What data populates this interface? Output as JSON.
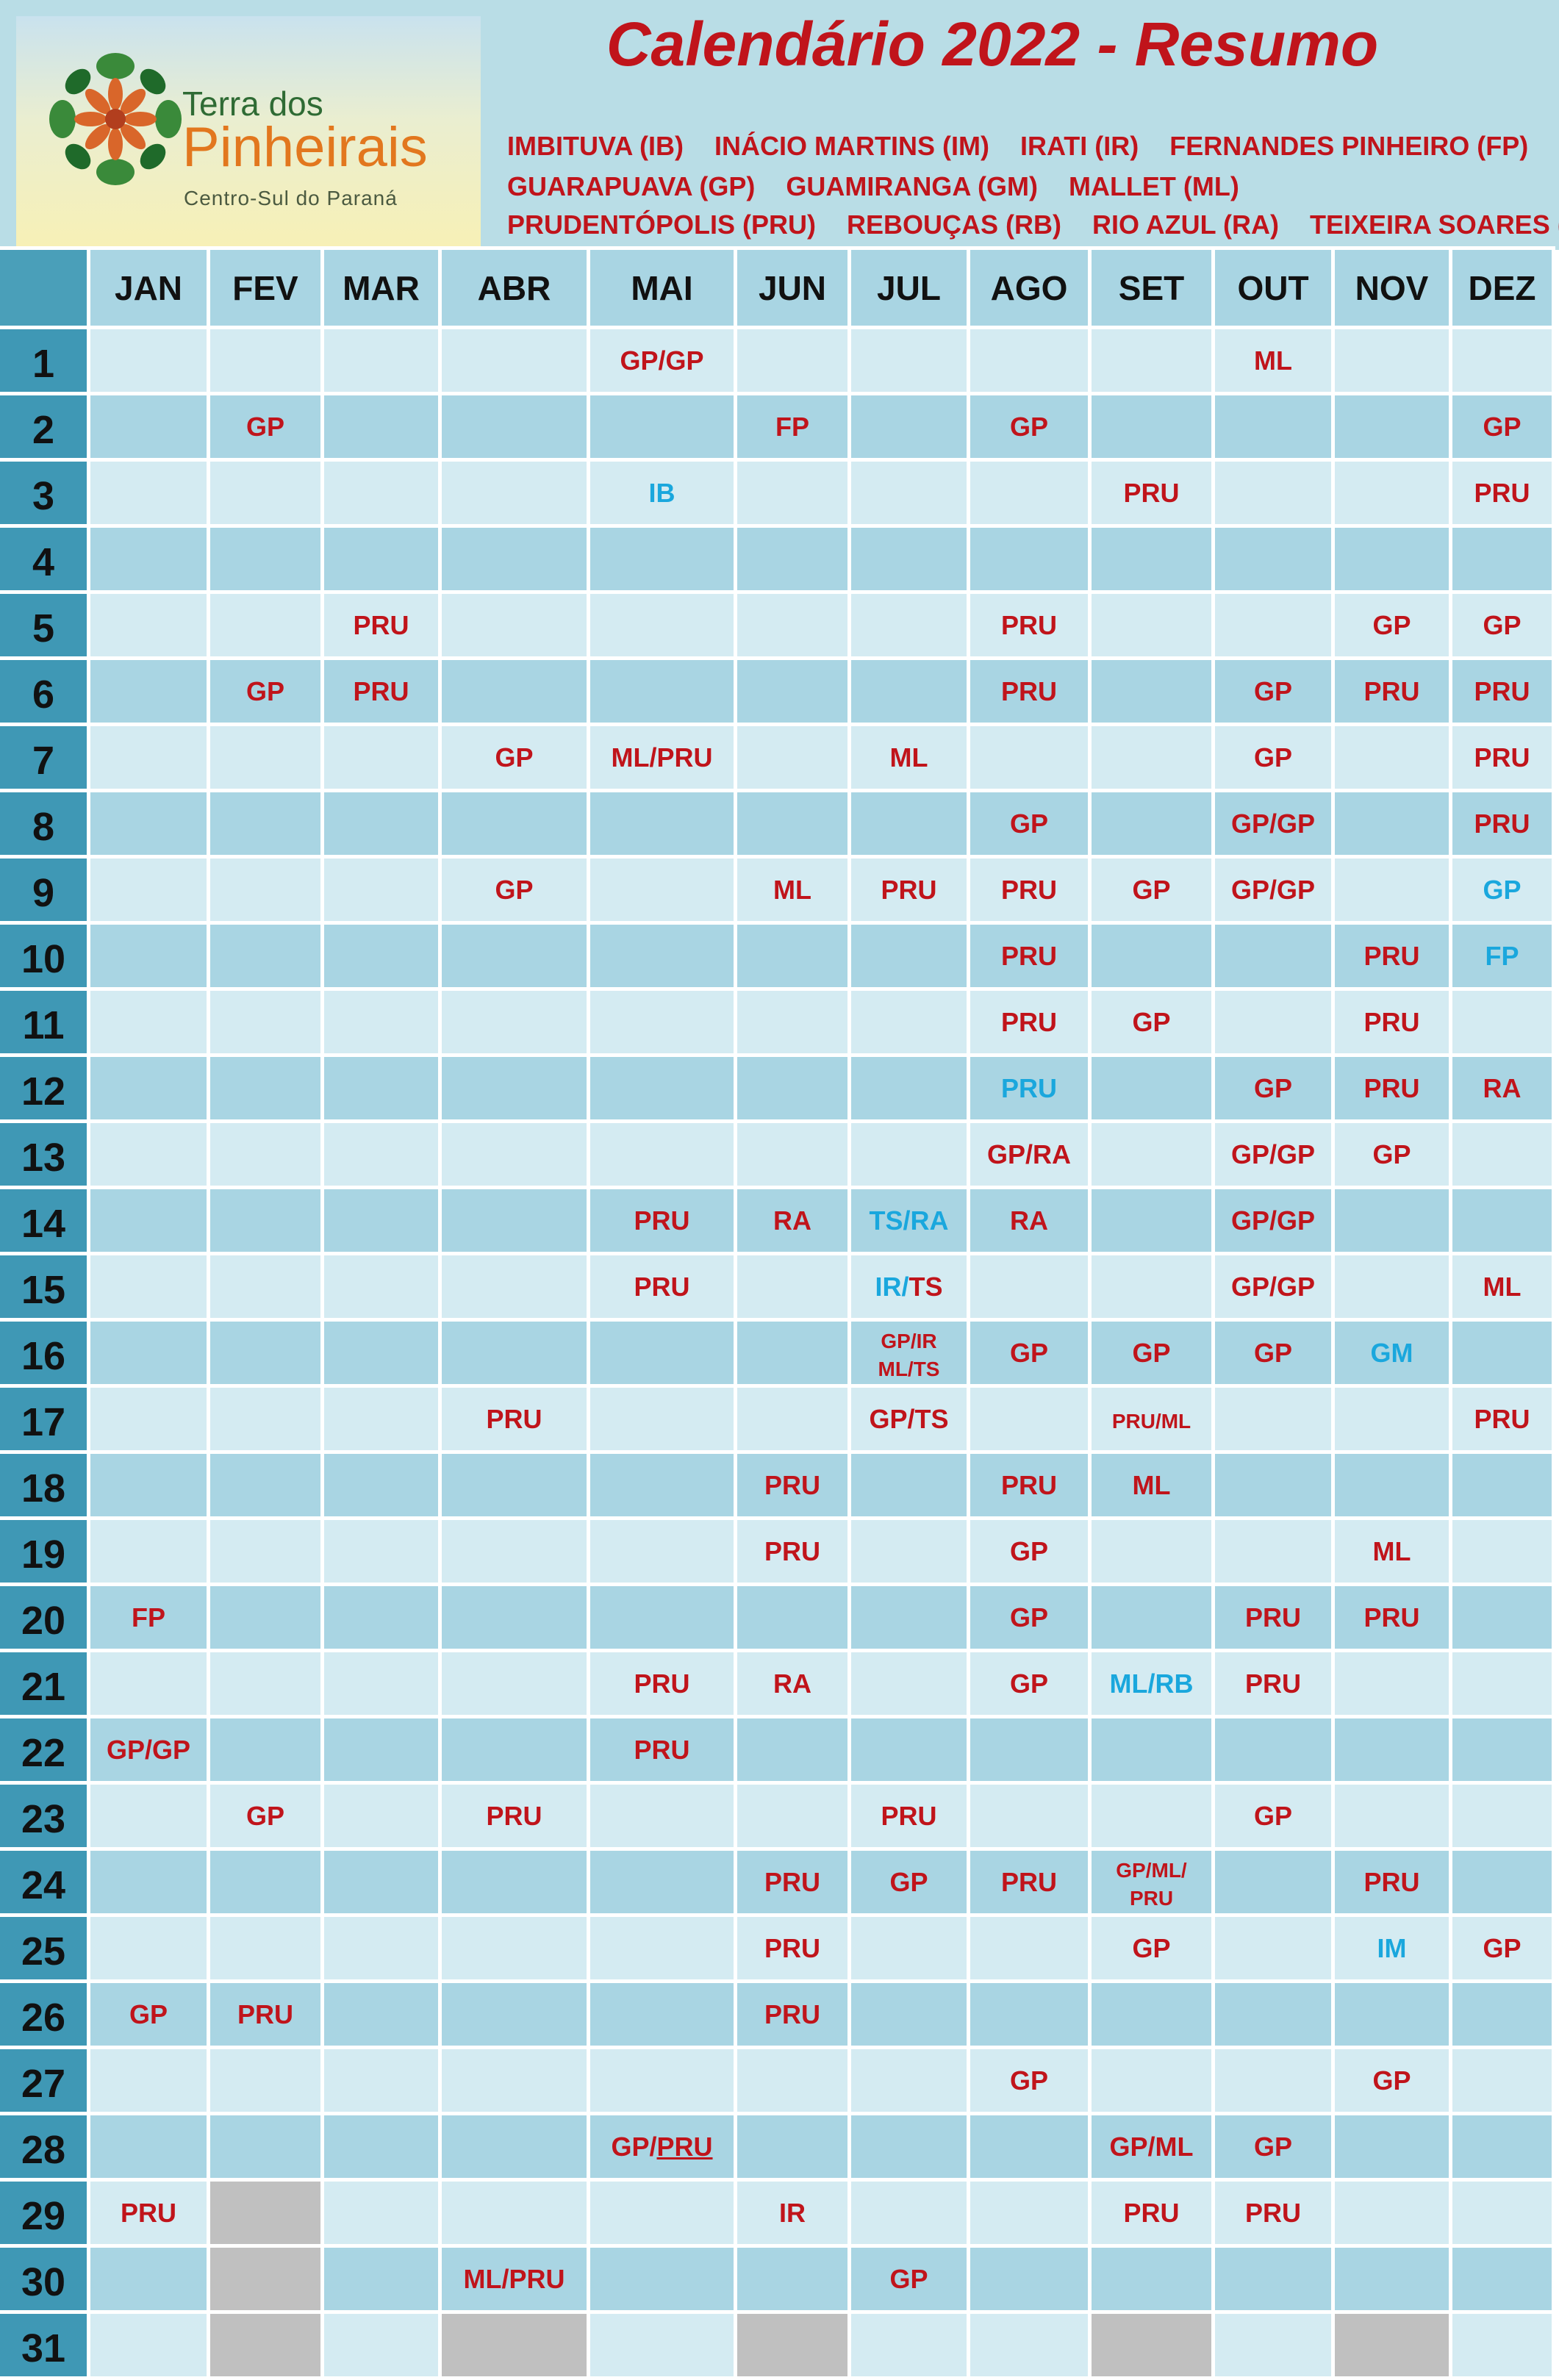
{
  "title": "Calendário 2022 - Resumo",
  "logo": {
    "line1": "Terra dos",
    "line2": "Pinheirais",
    "line3": "Centro-Sul do Paraná"
  },
  "legend": [
    [
      "IMBITUVA (IB)",
      "INÁCIO MARTINS (IM)",
      "IRATI (IR)",
      "FERNANDES PINHEIRO (FP)"
    ],
    [
      "GUARAPUAVA (GP)",
      "GUAMIRANGA (GM)",
      "MALLET (ML)"
    ],
    [
      "PRUDENTÓPOLIS (PRU)",
      "REBOUÇAS (RB)",
      "RIO AZUL (RA)",
      "TEIXEIRA SOARES (TS)"
    ]
  ],
  "months": [
    "JAN",
    "FEV",
    "MAR",
    "ABR",
    "MAI",
    "JUN",
    "JUL",
    "AGO",
    "SET",
    "OUT",
    "NOV",
    "DEZ"
  ],
  "colors": {
    "red": "#c0141b",
    "blue": "#1aa7dd",
    "header_bg": "#b9dde6",
    "row_light": "#d4ebf2",
    "row_dark": "#a9d5e3",
    "daynum_bg": "#3f98b5",
    "disabled": "#c0c0c0"
  },
  "days": [
    {
      "day": "1",
      "cells": [
        "",
        "",
        "",
        "",
        [
          [
            "GP/GP",
            "r"
          ]
        ],
        "",
        "",
        "",
        "",
        [
          [
            "ML",
            "r"
          ]
        ],
        "",
        ""
      ]
    },
    {
      "day": "2",
      "cells": [
        "",
        [
          [
            "GP",
            "r"
          ]
        ],
        "",
        "",
        "",
        [
          [
            "FP",
            "r"
          ]
        ],
        "",
        [
          [
            "GP",
            "r"
          ]
        ],
        "",
        "",
        "",
        [
          [
            "GP",
            "r"
          ]
        ]
      ]
    },
    {
      "day": "3",
      "cells": [
        "",
        "",
        "",
        "",
        [
          [
            "IB",
            "b"
          ]
        ],
        "",
        "",
        "",
        [
          [
            "PRU",
            "r"
          ]
        ],
        "",
        "",
        [
          [
            "PRU",
            "r"
          ]
        ]
      ]
    },
    {
      "day": "4",
      "cells": [
        "",
        "",
        "",
        "",
        "",
        "",
        "",
        "",
        "",
        "",
        "",
        ""
      ]
    },
    {
      "day": "5",
      "cells": [
        "",
        "",
        [
          [
            "PRU",
            "r"
          ]
        ],
        "",
        "",
        "",
        "",
        [
          [
            "PRU",
            "r"
          ]
        ],
        "",
        "",
        [
          [
            "GP",
            "r"
          ]
        ],
        [
          [
            "GP",
            "r"
          ]
        ]
      ]
    },
    {
      "day": "6",
      "cells": [
        "",
        [
          [
            "GP",
            "r"
          ]
        ],
        [
          [
            "PRU",
            "r"
          ]
        ],
        "",
        "",
        "",
        "",
        [
          [
            "PRU",
            "r"
          ]
        ],
        "",
        [
          [
            "GP",
            "r"
          ]
        ],
        [
          [
            "PRU",
            "r"
          ]
        ],
        [
          [
            "PRU",
            "r"
          ]
        ]
      ]
    },
    {
      "day": "7",
      "cells": [
        "",
        "",
        "",
        [
          [
            "GP",
            "r"
          ]
        ],
        [
          [
            "ML/PRU",
            "r"
          ]
        ],
        "",
        [
          [
            "ML",
            "r"
          ]
        ],
        "",
        "",
        [
          [
            "GP",
            "r"
          ]
        ],
        "",
        [
          [
            "PRU",
            "r"
          ]
        ]
      ]
    },
    {
      "day": "8",
      "cells": [
        "",
        "",
        "",
        "",
        "",
        "",
        "",
        [
          [
            "GP",
            "r"
          ]
        ],
        "",
        [
          [
            "GP/GP",
            "r"
          ]
        ],
        "",
        [
          [
            "PRU",
            "r"
          ]
        ]
      ]
    },
    {
      "day": "9",
      "cells": [
        "",
        "",
        "",
        [
          [
            "GP",
            "r"
          ]
        ],
        "",
        [
          [
            "ML",
            "r"
          ]
        ],
        [
          [
            "PRU",
            "r"
          ]
        ],
        [
          [
            "PRU",
            "r"
          ]
        ],
        [
          [
            "GP",
            "r"
          ]
        ],
        [
          [
            "GP/GP",
            "r"
          ]
        ],
        "",
        [
          [
            "GP",
            "b"
          ]
        ]
      ]
    },
    {
      "day": "10",
      "cells": [
        "",
        "",
        "",
        "",
        "",
        "",
        "",
        [
          [
            "PRU",
            "r"
          ]
        ],
        "",
        "",
        [
          [
            "PRU",
            "r"
          ]
        ],
        [
          [
            "FP",
            "b"
          ]
        ]
      ]
    },
    {
      "day": "11",
      "cells": [
        "",
        "",
        "",
        "",
        "",
        "",
        "",
        [
          [
            "PRU",
            "r"
          ]
        ],
        [
          [
            "GP",
            "r"
          ]
        ],
        "",
        [
          [
            "PRU",
            "r"
          ]
        ],
        ""
      ]
    },
    {
      "day": "12",
      "cells": [
        "",
        "",
        "",
        "",
        "",
        "",
        "",
        [
          [
            "PRU",
            "b"
          ]
        ],
        "",
        [
          [
            "GP",
            "r"
          ]
        ],
        [
          [
            "PRU",
            "r"
          ]
        ],
        [
          [
            "RA",
            "r"
          ]
        ]
      ]
    },
    {
      "day": "13",
      "cells": [
        "",
        "",
        "",
        "",
        "",
        "",
        "",
        [
          [
            "GP/RA",
            "r"
          ]
        ],
        "",
        [
          [
            "GP/GP",
            "r"
          ]
        ],
        [
          [
            "GP",
            "r"
          ]
        ],
        ""
      ]
    },
    {
      "day": "14",
      "cells": [
        "",
        "",
        "",
        "",
        [
          [
            "PRU",
            "r"
          ]
        ],
        [
          [
            "RA",
            "r"
          ]
        ],
        [
          [
            "TS/RA",
            "b"
          ]
        ],
        [
          [
            "RA",
            "r"
          ]
        ],
        "",
        [
          [
            "GP/GP",
            "r"
          ]
        ],
        "",
        ""
      ]
    },
    {
      "day": "15",
      "cells": [
        "",
        "",
        "",
        "",
        [
          [
            "PRU",
            "r"
          ]
        ],
        "",
        [
          [
            "IR/",
            "b"
          ],
          [
            "TS",
            "r"
          ]
        ],
        "",
        "",
        [
          [
            "GP/GP",
            "r"
          ]
        ],
        "",
        [
          [
            "ML",
            "r"
          ]
        ]
      ]
    },
    {
      "day": "16",
      "cells": [
        "",
        "",
        "",
        "",
        "",
        "",
        [
          [
            "GP/IR",
            "r",
            "s"
          ],
          [
            "|",
            ""
          ],
          [
            "ML/TS",
            "r",
            "s"
          ]
        ],
        [
          [
            "GP",
            "r"
          ]
        ],
        [
          [
            "GP",
            "r"
          ]
        ],
        [
          [
            "GP",
            "r"
          ]
        ],
        [
          [
            "GM",
            "b"
          ]
        ],
        ""
      ]
    },
    {
      "day": "17",
      "cells": [
        "",
        "",
        "",
        [
          [
            "PRU",
            "r"
          ]
        ],
        "",
        "",
        [
          [
            "GP/TS",
            "r"
          ]
        ],
        "",
        [
          [
            "PRU/ML",
            "r",
            "s"
          ]
        ],
        "",
        "",
        [
          [
            "PRU",
            "r"
          ]
        ]
      ]
    },
    {
      "day": "18",
      "cells": [
        "",
        "",
        "",
        "",
        "",
        [
          [
            "PRU",
            "r"
          ]
        ],
        "",
        [
          [
            "PRU",
            "r"
          ]
        ],
        [
          [
            "ML",
            "r"
          ]
        ],
        "",
        "",
        ""
      ]
    },
    {
      "day": "19",
      "cells": [
        "",
        "",
        "",
        "",
        "",
        [
          [
            "PRU",
            "r"
          ]
        ],
        "",
        [
          [
            "GP",
            "r"
          ]
        ],
        "",
        "",
        [
          [
            "ML",
            "r"
          ]
        ],
        ""
      ]
    },
    {
      "day": "20",
      "cells": [
        [
          [
            "FP",
            "r"
          ]
        ],
        "",
        "",
        "",
        "",
        "",
        "",
        [
          [
            "GP",
            "r"
          ]
        ],
        "",
        [
          [
            "PRU",
            "r"
          ]
        ],
        [
          [
            "PRU",
            "r"
          ]
        ],
        ""
      ]
    },
    {
      "day": "21",
      "cells": [
        "",
        "",
        "",
        "",
        [
          [
            "PRU",
            "r"
          ]
        ],
        [
          [
            "RA",
            "r"
          ]
        ],
        "",
        [
          [
            "GP",
            "r"
          ]
        ],
        [
          [
            "ML/RB",
            "b"
          ]
        ],
        [
          [
            "PRU",
            "r"
          ]
        ],
        "",
        ""
      ]
    },
    {
      "day": "22",
      "cells": [
        [
          [
            "GP/GP",
            "r"
          ]
        ],
        "",
        "",
        "",
        [
          [
            "PRU",
            "r"
          ]
        ],
        "",
        "",
        "",
        "",
        "",
        "",
        ""
      ]
    },
    {
      "day": "23",
      "cells": [
        "",
        [
          [
            "GP",
            "r"
          ]
        ],
        "",
        [
          [
            "PRU",
            "r"
          ]
        ],
        "",
        "",
        [
          [
            "PRU",
            "r"
          ]
        ],
        "",
        "",
        [
          [
            "GP",
            "r"
          ]
        ],
        "",
        ""
      ]
    },
    {
      "day": "24",
      "cells": [
        "",
        "",
        "",
        "",
        "",
        [
          [
            "PRU",
            "r"
          ]
        ],
        [
          [
            "GP",
            "r"
          ]
        ],
        [
          [
            "PRU",
            "r"
          ]
        ],
        [
          [
            "GP/ML/",
            "r",
            "s"
          ],
          [
            "|",
            ""
          ],
          [
            "PRU",
            "r",
            "s"
          ]
        ],
        "",
        [
          [
            "PRU",
            "r"
          ]
        ],
        ""
      ]
    },
    {
      "day": "25",
      "cells": [
        "",
        "",
        "",
        "",
        "",
        [
          [
            "PRU",
            "r"
          ]
        ],
        "",
        "",
        [
          [
            "GP",
            "r"
          ]
        ],
        "",
        [
          [
            "IM",
            "b"
          ]
        ],
        [
          [
            "GP",
            "r"
          ]
        ]
      ]
    },
    {
      "day": "26",
      "cells": [
        [
          [
            "GP",
            "r"
          ]
        ],
        [
          [
            "PRU",
            "r"
          ]
        ],
        "",
        "",
        "",
        [
          [
            "PRU",
            "r"
          ]
        ],
        "",
        "",
        "",
        "",
        "",
        ""
      ]
    },
    {
      "day": "27",
      "cells": [
        "",
        "",
        "",
        "",
        "",
        "",
        "",
        [
          [
            "GP",
            "r"
          ]
        ],
        "",
        "",
        [
          [
            "GP",
            "r"
          ]
        ],
        ""
      ]
    },
    {
      "day": "28",
      "cells": [
        "",
        "",
        "",
        "",
        [
          [
            "GP/",
            "r"
          ],
          [
            "PRU",
            "r",
            "u"
          ]
        ],
        "",
        "",
        "",
        [
          [
            "GP/ML",
            "r"
          ]
        ],
        [
          [
            "GP",
            "r"
          ]
        ],
        "",
        ""
      ]
    },
    {
      "day": "29",
      "cells": [
        [
          [
            "PRU",
            "r"
          ]
        ],
        "X",
        "",
        "",
        "",
        [
          [
            "IR",
            "r"
          ]
        ],
        "",
        "",
        [
          [
            "PRU",
            "r"
          ]
        ],
        [
          [
            "PRU",
            "r"
          ]
        ],
        "",
        ""
      ]
    },
    {
      "day": "30",
      "cells": [
        "",
        "X",
        "",
        [
          [
            "ML/PRU",
            "r"
          ]
        ],
        "",
        "",
        [
          [
            "GP",
            "r"
          ]
        ],
        "",
        "",
        "",
        "",
        ""
      ]
    },
    {
      "day": "31",
      "cells": [
        "",
        "X",
        "",
        "X",
        "",
        "X",
        "",
        "",
        "X",
        "",
        "X",
        ""
      ]
    }
  ]
}
